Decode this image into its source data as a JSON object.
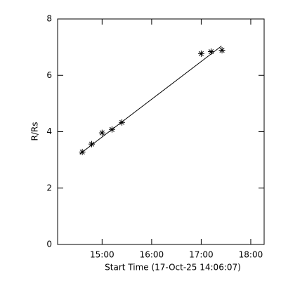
{
  "chart_data": {
    "type": "scatter",
    "xlabel": "Start Time (17-Oct-25 14:06:07)",
    "ylabel": "R/Rs",
    "x": [
      14.6,
      14.79,
      15.0,
      15.2,
      15.4,
      17.0,
      17.2,
      17.42
    ],
    "values": [
      3.28,
      3.56,
      3.96,
      4.08,
      4.33,
      6.77,
      6.84,
      6.89
    ],
    "marker": "asterisk",
    "color": "#000000",
    "fit": {
      "x": [
        14.55,
        17.41
      ],
      "values": [
        3.21,
        7.04
      ]
    },
    "xlim": [
      14.102,
      18.27
    ],
    "ylim": [
      0,
      8
    ],
    "xticks": [
      {
        "value": 15,
        "label": "15:00"
      },
      {
        "value": 16,
        "label": "16:00"
      },
      {
        "value": 17,
        "label": "17:00"
      },
      {
        "value": 18,
        "label": "18:00"
      }
    ],
    "yticks": [
      0,
      2,
      4,
      6,
      8
    ],
    "grid": false
  }
}
